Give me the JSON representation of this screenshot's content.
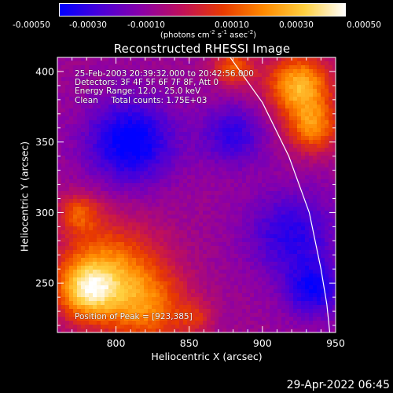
{
  "colorbar": {
    "tick_labels": [
      "-0.00050",
      "-0.00030",
      "-0.00010",
      "0.00010",
      "0.00030",
      "0.00050"
    ],
    "tick_values": [
      -0.0005,
      -0.0003,
      -0.0001,
      0.0001,
      0.0003,
      0.0005
    ],
    "units_prefix": "(photons cm",
    "units_exp1": "-2",
    "units_mid": " s",
    "units_exp2": "-1",
    "units_mid2": " asec",
    "units_exp3": "-2",
    "units_suffix": ")",
    "colors": [
      "#0000ff",
      "#4a00d8",
      "#8a00a8",
      "#c0105a",
      "#e83a00",
      "#ff8a00",
      "#ffd040",
      "#ffffff"
    ]
  },
  "chart_data": {
    "type": "heatmap",
    "title": "Reconstructed RHESSI Image",
    "xlabel": "Heliocentric X (arcsec)",
    "ylabel": "Heliocentric Y (arcsec)",
    "xlim": [
      760,
      950
    ],
    "ylim": [
      215,
      410
    ],
    "x_ticks": [
      800,
      850,
      900,
      950
    ],
    "y_ticks": [
      250,
      300,
      350,
      400
    ],
    "x_tick_labels": [
      "800",
      "850",
      "900",
      "950"
    ],
    "y_tick_labels": [
      "250",
      "300",
      "350",
      "400"
    ],
    "limb_curve": [
      [
        878,
        410
      ],
      [
        900,
        378
      ],
      [
        918,
        340
      ],
      [
        932,
        300
      ],
      [
        940,
        260
      ],
      [
        944,
        235
      ],
      [
        946,
        215
      ]
    ],
    "peak": [
      923,
      385
    ],
    "regions": [
      {
        "cx": 925,
        "cy": 390,
        "r": 22,
        "level": 0.95
      },
      {
        "cx": 935,
        "cy": 360,
        "r": 18,
        "level": 0.7
      },
      {
        "cx": 880,
        "cy": 403,
        "r": 14,
        "level": 0.6
      },
      {
        "cx": 795,
        "cy": 260,
        "r": 35,
        "level": 0.7
      },
      {
        "cx": 780,
        "cy": 245,
        "r": 20,
        "level": 0.8
      },
      {
        "cx": 822,
        "cy": 232,
        "r": 28,
        "level": 0.6
      },
      {
        "cx": 775,
        "cy": 300,
        "r": 14,
        "level": 0.5
      },
      {
        "cx": 855,
        "cy": 225,
        "r": 12,
        "level": 0.3
      },
      {
        "cx": 810,
        "cy": 350,
        "r": 30,
        "level": -0.7
      },
      {
        "cx": 920,
        "cy": 285,
        "r": 30,
        "level": -0.5
      },
      {
        "cx": 880,
        "cy": 355,
        "r": 22,
        "level": -0.45
      },
      {
        "cx": 935,
        "cy": 245,
        "r": 20,
        "level": -0.55
      }
    ]
  },
  "annotations": {
    "time_range": "25-Feb-2003 20:39:32.000 to 20:42:56.000",
    "detectors": "Detectors: 3F 4F 5F 6F 7F 8F, Att 0",
    "energy": "Energy Range: 12.0 - 25.0 keV",
    "clean": "Clean     Total counts: 1.75E+03",
    "peak_position": "Position of Peak = [923,385]"
  },
  "footer": {
    "timestamp": "29-Apr-2022 06:45"
  }
}
